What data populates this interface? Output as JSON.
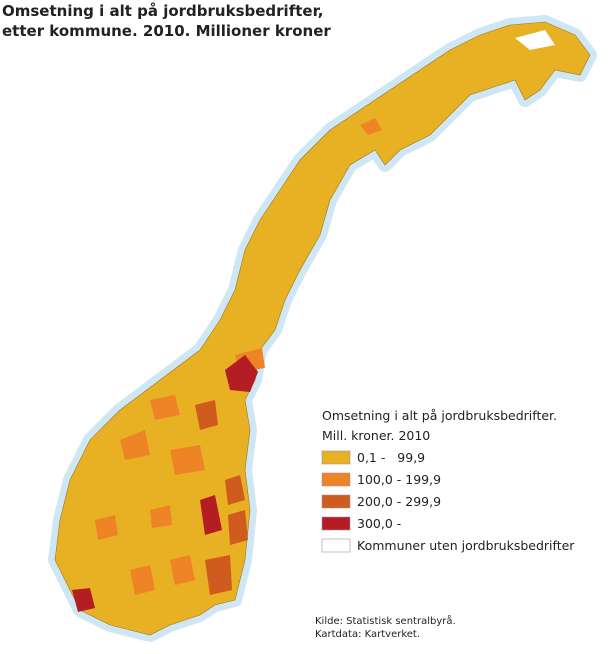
{
  "title": [
    "Omsetning i alt på jordbruksbedrifter,",
    "etter kommune. 2010. Millioner kroner"
  ],
  "legend": {
    "title": [
      "Omsetning i alt på jordbruksbedrifter.",
      "Mill. kroner. 2010"
    ],
    "items": [
      {
        "label": "0,1 -   99,9",
        "color": "#e8b023"
      },
      {
        "label": "100,0 - 199,9",
        "color": "#ee8426"
      },
      {
        "label": "200,0 - 299,9",
        "color": "#cf5b1f"
      },
      {
        "label": "300,0 -",
        "color": "#b31d23"
      },
      {
        "label": "Kommuner uten jordbruksbedrifter",
        "color": "#ffffff"
      }
    ]
  },
  "source": [
    "Kilde: Statistisk sentralbyrå.",
    "Kartdata: Kartverket."
  ]
}
